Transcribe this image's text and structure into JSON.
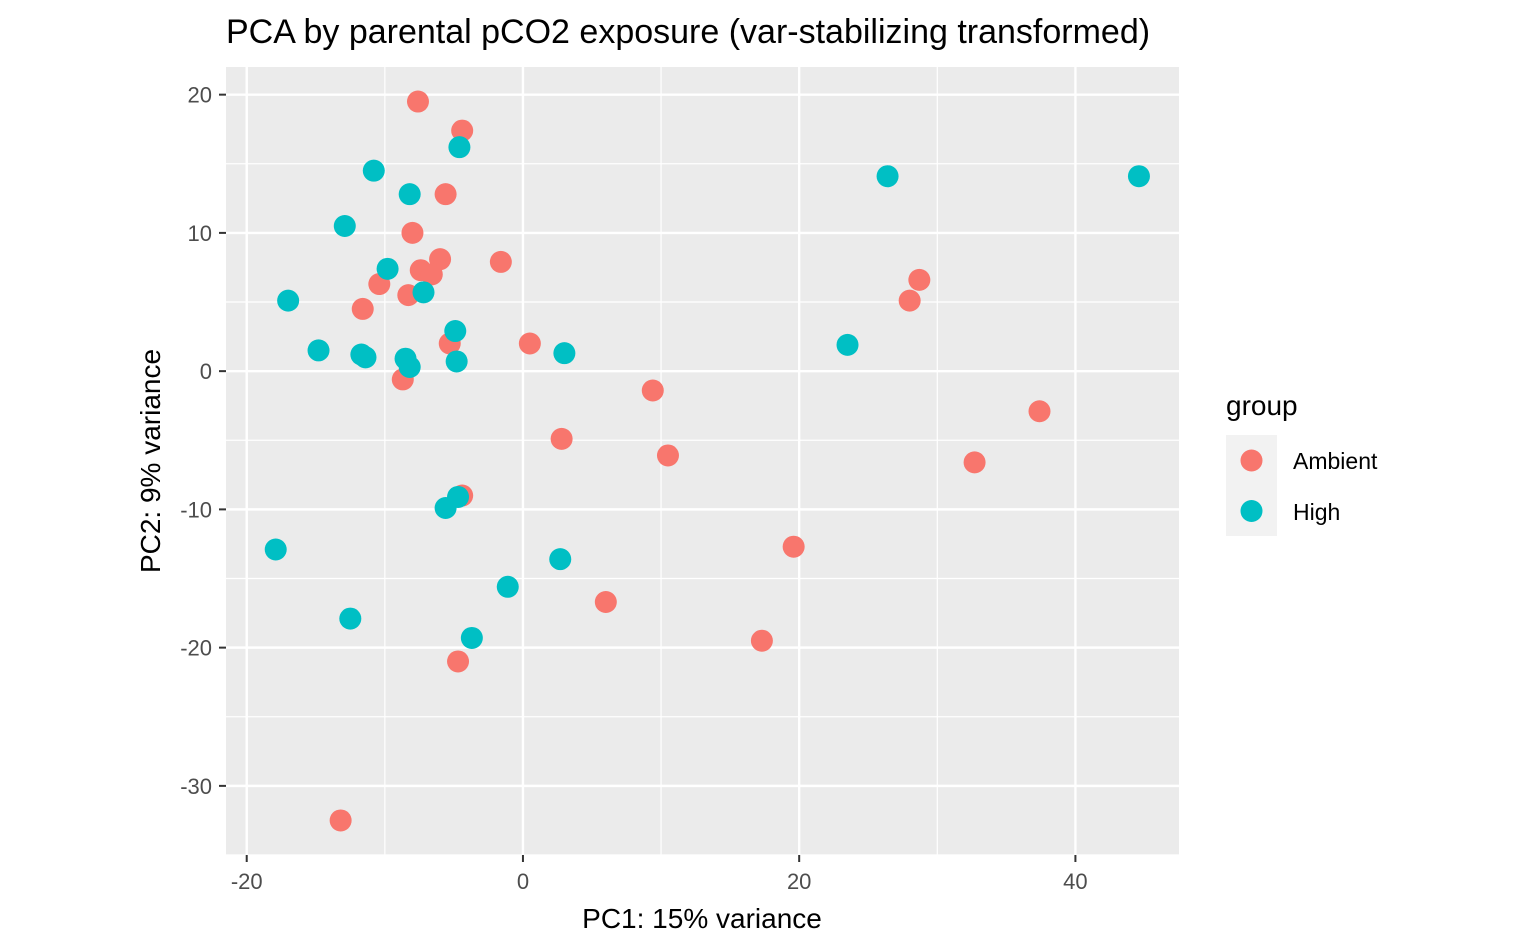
{
  "chart_data": {
    "type": "scatter",
    "title": "PCA by parental pCO2 exposure (var-stabilizing transformed)",
    "xlabel": "PC1: 15% variance",
    "ylabel": "PC2: 9% variance",
    "xlim": [
      -21.5,
      47.5
    ],
    "ylim": [
      -35,
      22
    ],
    "xticks": [
      -20,
      0,
      20,
      40
    ],
    "xtick_labels": [
      "-20",
      "0",
      "20",
      "40"
    ],
    "yticks": [
      20,
      10,
      0,
      -10,
      -20,
      -30
    ],
    "ytick_labels": [
      "20",
      "10",
      "0",
      "-10",
      "-20",
      "-30"
    ],
    "grid": true,
    "legend": {
      "title": "group",
      "position": "right"
    },
    "series": [
      {
        "name": "Ambient",
        "color": "#F8766D",
        "points": [
          [
            -7.6,
            19.5
          ],
          [
            -4.4,
            17.4
          ],
          [
            -5.6,
            12.8
          ],
          [
            -8.0,
            10.0
          ],
          [
            -1.6,
            7.9
          ],
          [
            -6.0,
            8.1
          ],
          [
            -7.4,
            7.3
          ],
          [
            -6.6,
            7.0
          ],
          [
            -10.4,
            6.3
          ],
          [
            -8.3,
            5.5
          ],
          [
            -11.6,
            4.5
          ],
          [
            -5.3,
            2.0
          ],
          [
            0.5,
            2.0
          ],
          [
            -8.7,
            -0.6
          ],
          [
            9.4,
            -1.4
          ],
          [
            2.8,
            -4.9
          ],
          [
            10.5,
            -6.1
          ],
          [
            -4.4,
            -9.0
          ],
          [
            19.6,
            -12.7
          ],
          [
            6.0,
            -16.7
          ],
          [
            17.3,
            -19.5
          ],
          [
            -4.7,
            -21.0
          ],
          [
            -13.2,
            -32.5
          ],
          [
            28.7,
            6.6
          ],
          [
            28.0,
            5.1
          ],
          [
            37.4,
            -2.9
          ],
          [
            32.7,
            -6.6
          ]
        ]
      },
      {
        "name": "High",
        "color": "#00BFC4",
        "points": [
          [
            -4.6,
            16.2
          ],
          [
            -10.8,
            14.5
          ],
          [
            -8.2,
            12.8
          ],
          [
            -12.9,
            10.5
          ],
          [
            -9.8,
            7.4
          ],
          [
            -7.2,
            5.7
          ],
          [
            -17.0,
            5.1
          ],
          [
            -4.9,
            2.9
          ],
          [
            -14.8,
            1.5
          ],
          [
            -11.7,
            1.2
          ],
          [
            -11.4,
            1.0
          ],
          [
            -8.5,
            0.9
          ],
          [
            -8.2,
            0.3
          ],
          [
            -4.8,
            0.7
          ],
          [
            3.0,
            1.3
          ],
          [
            -4.7,
            -9.1
          ],
          [
            -5.6,
            -9.9
          ],
          [
            -17.9,
            -12.9
          ],
          [
            2.7,
            -13.6
          ],
          [
            -1.1,
            -15.6
          ],
          [
            -12.5,
            -17.9
          ],
          [
            -3.7,
            -19.3
          ],
          [
            26.4,
            14.1
          ],
          [
            44.6,
            14.1
          ],
          [
            23.5,
            1.9
          ]
        ]
      }
    ]
  }
}
